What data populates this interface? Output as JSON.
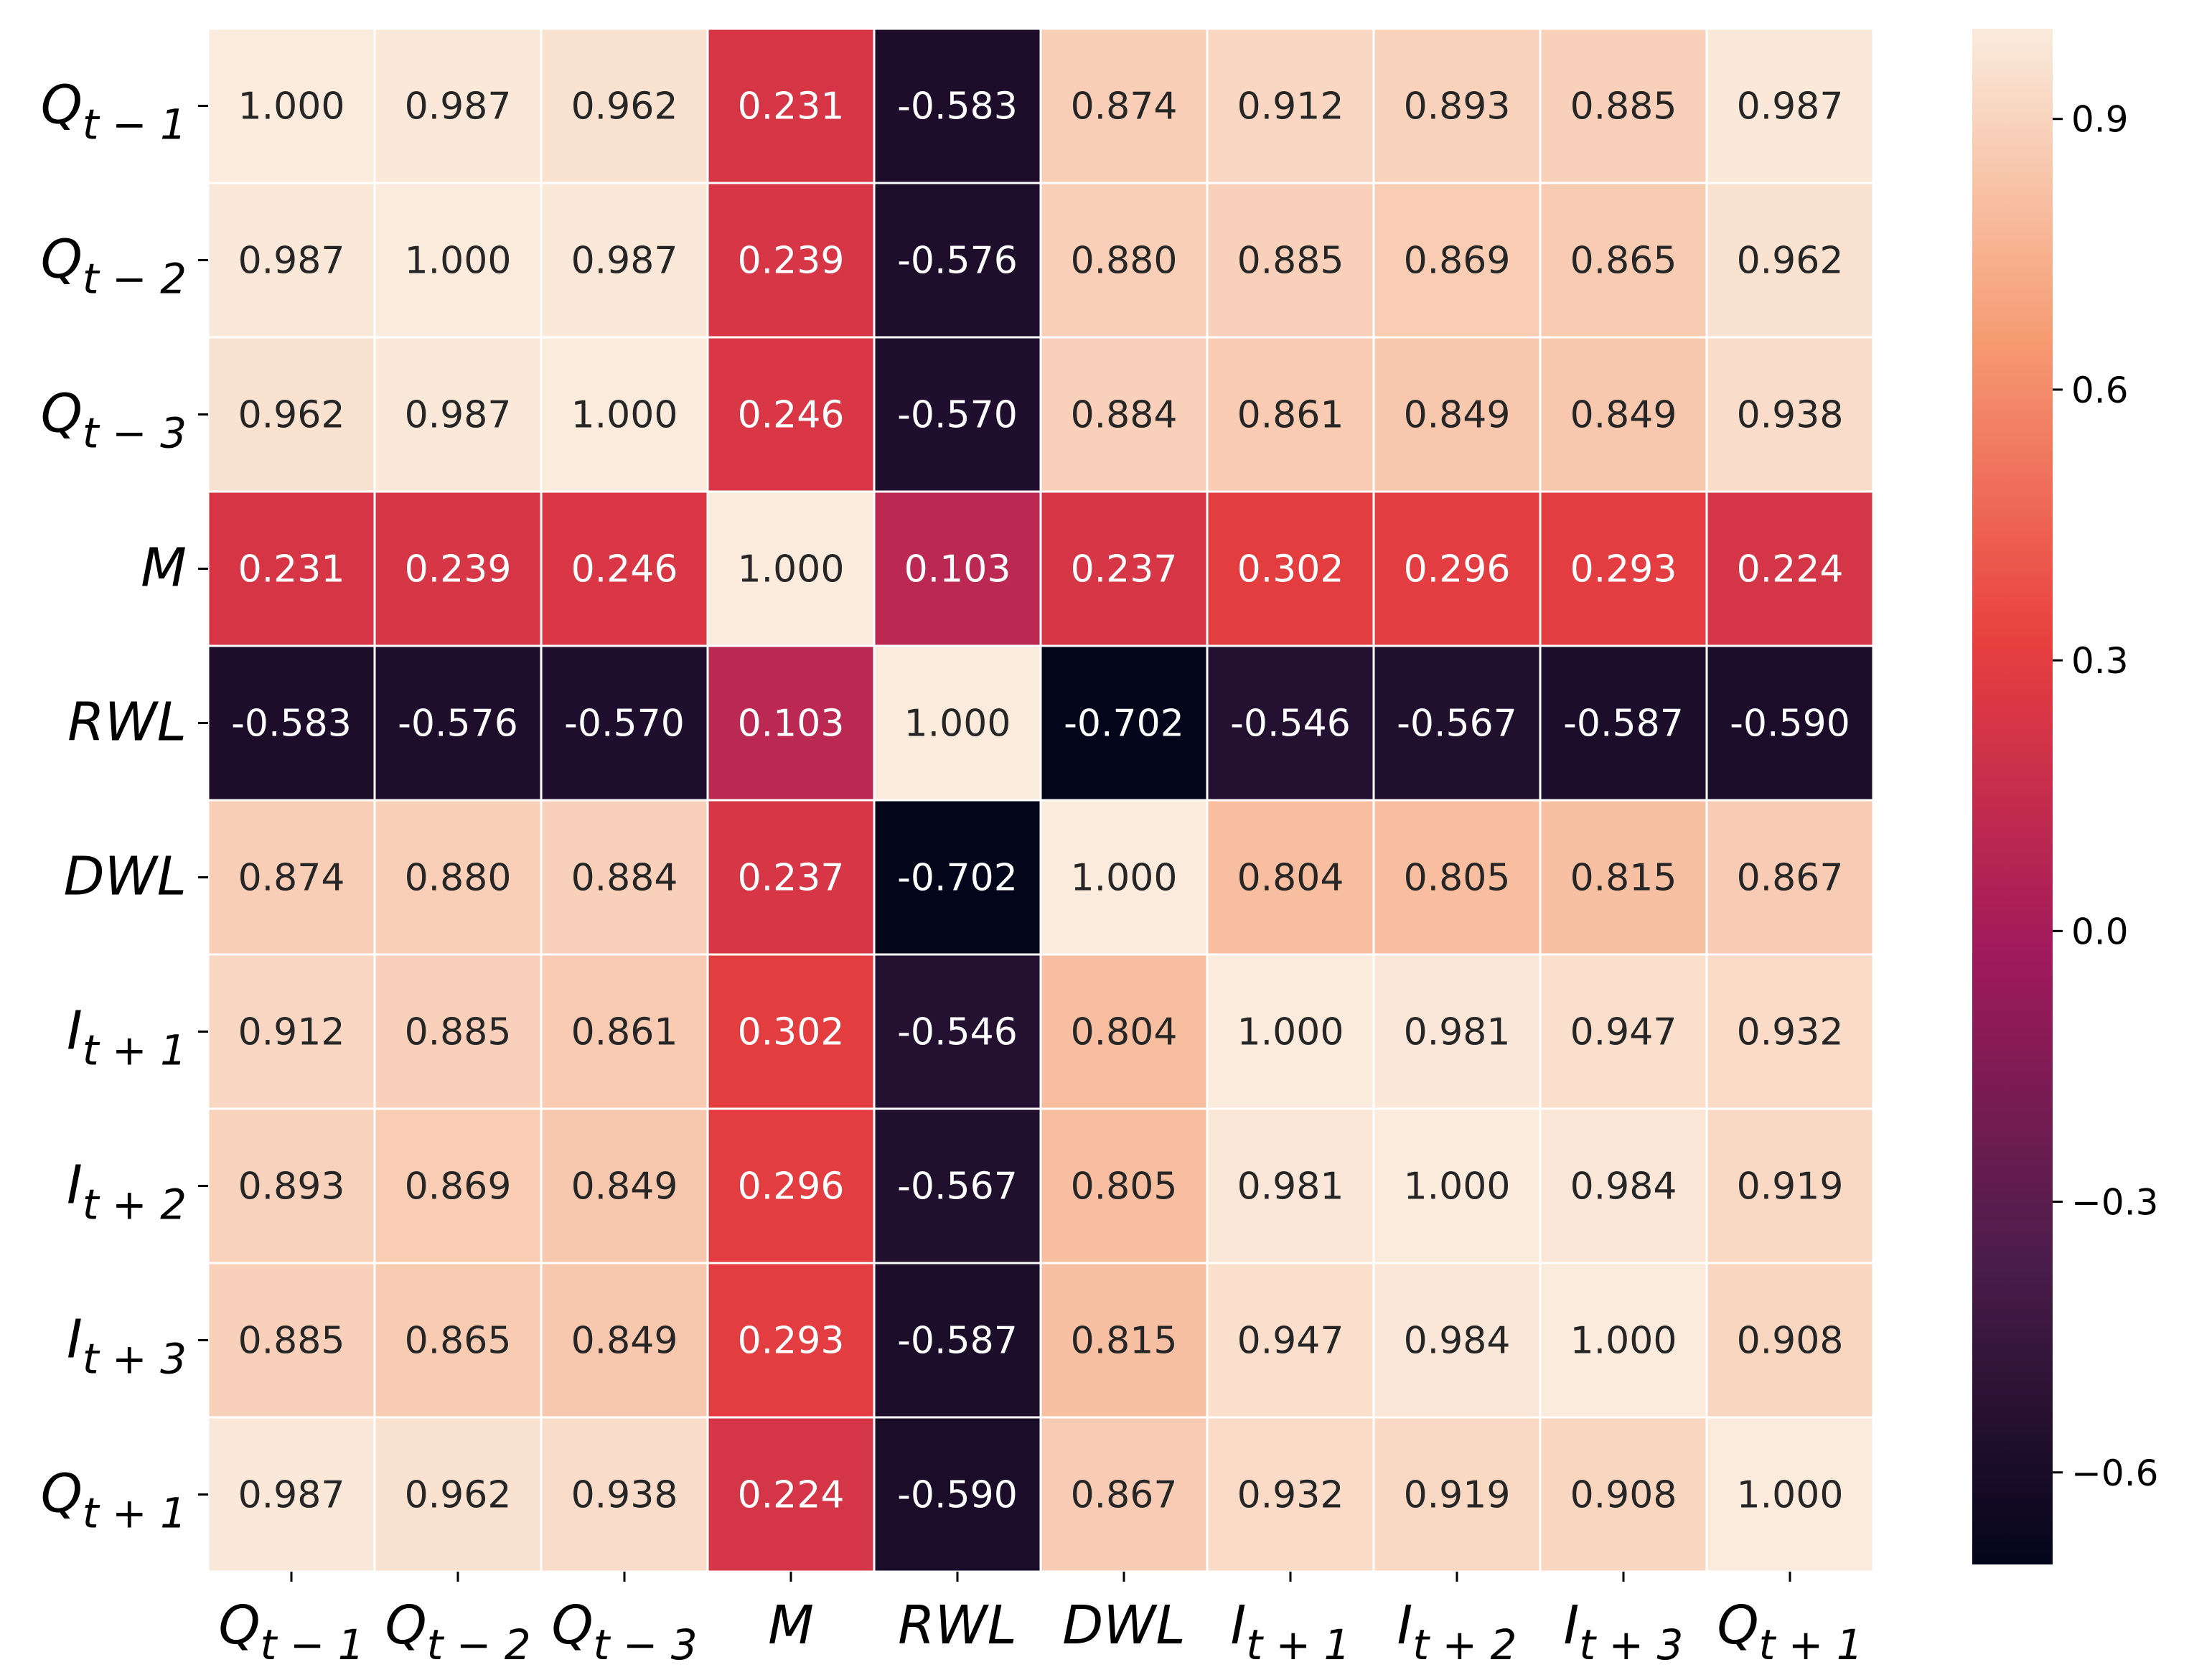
{
  "chart_data": {
    "type": "heatmap",
    "title": "",
    "xlabel": "",
    "ylabel": "",
    "labels": [
      {
        "id": "Q_t-1",
        "base": "Q",
        "sub": "t − 1"
      },
      {
        "id": "Q_t-2",
        "base": "Q",
        "sub": "t − 2"
      },
      {
        "id": "Q_t-3",
        "base": "Q",
        "sub": "t − 3"
      },
      {
        "id": "M",
        "base": "M",
        "sub": ""
      },
      {
        "id": "RWL",
        "base": "RWL",
        "sub": ""
      },
      {
        "id": "DWL",
        "base": "DWL",
        "sub": ""
      },
      {
        "id": "I_t+1",
        "base": "I",
        "sub": "t + 1"
      },
      {
        "id": "I_t+2",
        "base": "I",
        "sub": "t + 2"
      },
      {
        "id": "I_t+3",
        "base": "I",
        "sub": "t + 3"
      },
      {
        "id": "Q_t+1",
        "base": "Q",
        "sub": "t + 1"
      }
    ],
    "values": [
      [
        1.0,
        0.987,
        0.962,
        0.231,
        -0.583,
        0.874,
        0.912,
        0.893,
        0.885,
        0.987
      ],
      [
        0.987,
        1.0,
        0.987,
        0.239,
        -0.576,
        0.88,
        0.885,
        0.869,
        0.865,
        0.962
      ],
      [
        0.962,
        0.987,
        1.0,
        0.246,
        -0.57,
        0.884,
        0.861,
        0.849,
        0.849,
        0.938
      ],
      [
        0.231,
        0.239,
        0.246,
        1.0,
        0.103,
        0.237,
        0.302,
        0.296,
        0.293,
        0.224
      ],
      [
        -0.583,
        -0.576,
        -0.57,
        0.103,
        1.0,
        -0.702,
        -0.546,
        -0.567,
        -0.587,
        -0.59
      ],
      [
        0.874,
        0.88,
        0.884,
        0.237,
        -0.702,
        1.0,
        0.804,
        0.805,
        0.815,
        0.867
      ],
      [
        0.912,
        0.885,
        0.861,
        0.302,
        -0.546,
        0.804,
        1.0,
        0.981,
        0.947,
        0.932
      ],
      [
        0.893,
        0.869,
        0.849,
        0.296,
        -0.567,
        0.805,
        0.981,
        1.0,
        0.984,
        0.919
      ],
      [
        0.885,
        0.865,
        0.849,
        0.293,
        -0.587,
        0.815,
        0.947,
        0.984,
        1.0,
        0.908
      ],
      [
        0.987,
        0.962,
        0.938,
        0.224,
        -0.59,
        0.867,
        0.932,
        0.919,
        0.908,
        1.0
      ]
    ],
    "value_format": "3 decimals",
    "colormap": "rocket",
    "color_range": [
      -0.702,
      1.0
    ],
    "colorbar": {
      "position": "right",
      "ticks": [
        0.9,
        0.6,
        0.3,
        0.0,
        -0.3,
        -0.6
      ],
      "tick_labels": [
        "0.9",
        "0.6",
        "0.3",
        "0.0",
        "−0.3",
        "−0.6"
      ]
    },
    "grid": false,
    "cell_separator_color": "#ffffff",
    "text_color_light": "#ffffff",
    "text_color_dark": "#262626",
    "colormap_stops": [
      "#03051a",
      "#4c1d4b",
      "#a11a5b",
      "#e83f3f",
      "#f69c73",
      "#faebdd"
    ]
  }
}
